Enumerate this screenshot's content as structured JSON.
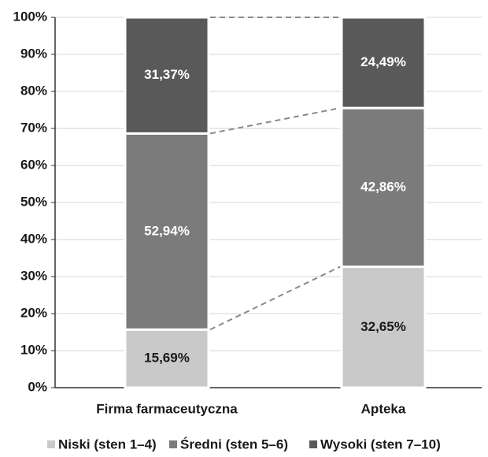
{
  "chart_data": {
    "type": "stacked_bar",
    "categories": [
      "Firma farmaceutyczna",
      "Apteka"
    ],
    "series": [
      {
        "name": "Niski (sten 1–4)",
        "color": "#c9c9c9",
        "label_color": "#1a1a1a",
        "values": [
          15.69,
          32.65
        ],
        "value_labels": [
          "15,69%",
          "32,65%"
        ]
      },
      {
        "name": "Średni (sten 5–6)",
        "color": "#7b7b7b",
        "label_color": "#ffffff",
        "values": [
          52.94,
          42.86
        ],
        "value_labels": [
          "52,94%",
          "42,86%"
        ]
      },
      {
        "name": "Wysoki (sten 7–10)",
        "color": "#595959",
        "label_color": "#ffffff",
        "values": [
          31.37,
          24.49
        ],
        "value_labels": [
          "31,37%",
          "24,49%"
        ]
      }
    ],
    "ylim": [
      0,
      100
    ],
    "yticks": [
      {
        "value": 0,
        "label": "0%"
      },
      {
        "value": 10,
        "label": "10%"
      },
      {
        "value": 20,
        "label": "20%"
      },
      {
        "value": 30,
        "label": "30%"
      },
      {
        "value": 40,
        "label": "40%"
      },
      {
        "value": 50,
        "label": "50%"
      },
      {
        "value": 60,
        "label": "60%"
      },
      {
        "value": 70,
        "label": "70%"
      },
      {
        "value": 80,
        "label": "80%"
      },
      {
        "value": 90,
        "label": "90%"
      },
      {
        "value": 100,
        "label": "100%"
      }
    ],
    "grid": true,
    "legend": "bottom"
  }
}
